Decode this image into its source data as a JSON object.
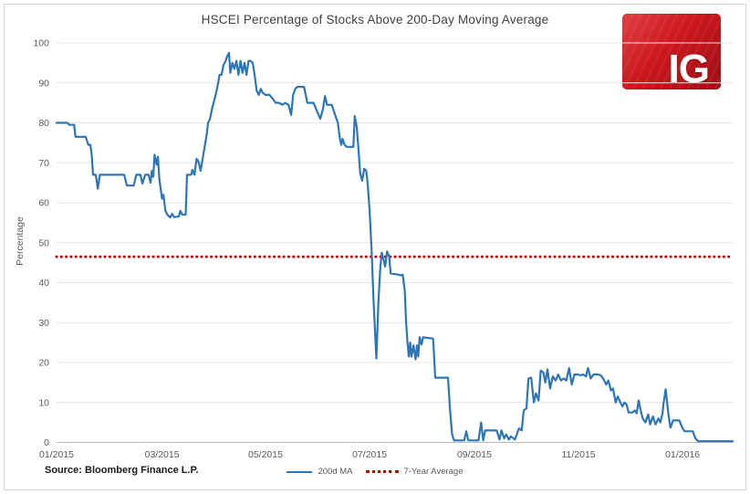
{
  "logo": {
    "text": "IG",
    "bg_color": "#cb181e"
  },
  "chart_data": {
    "type": "line",
    "title": "HSCEI Percentage of Stocks Above 200-Day Moving Average",
    "xlabel": "",
    "ylabel": "Percentage",
    "ylim": [
      0,
      100
    ],
    "y_ticks": [
      0,
      10,
      20,
      30,
      40,
      50,
      60,
      70,
      80,
      90,
      100
    ],
    "x_tick_labels": [
      "01/2015",
      "03/2015",
      "05/2015",
      "07/2015",
      "09/2015",
      "11/2015",
      "01/2016"
    ],
    "x_tick_pos": [
      0.0,
      0.156,
      0.309,
      0.463,
      0.618,
      0.772,
      0.926
    ],
    "grid": "horizontal",
    "legend_position": "bottom",
    "source": "Source: Bloomberg Finance L.P.",
    "reference_line": {
      "name": "7-Year Average",
      "value": 46.5,
      "color": "#C00000",
      "style": "dotted"
    },
    "series": [
      {
        "name": "200d MA",
        "color": "#2E75B6",
        "style": "solid",
        "points": [
          [
            0.0,
            80
          ],
          [
            0.016,
            80
          ],
          [
            0.019,
            79.5
          ],
          [
            0.026,
            79.5
          ],
          [
            0.028,
            76.5
          ],
          [
            0.043,
            76.5
          ],
          [
            0.047,
            74.5
          ],
          [
            0.05,
            74.5
          ],
          [
            0.052,
            72
          ],
          [
            0.054,
            67
          ],
          [
            0.058,
            67
          ],
          [
            0.061,
            63.5
          ],
          [
            0.064,
            67
          ],
          [
            0.1,
            67
          ],
          [
            0.104,
            64.3
          ],
          [
            0.114,
            64.3
          ],
          [
            0.118,
            67
          ],
          [
            0.124,
            67
          ],
          [
            0.127,
            64.8
          ],
          [
            0.131,
            67
          ],
          [
            0.136,
            67
          ],
          [
            0.139,
            65
          ],
          [
            0.141,
            68
          ],
          [
            0.143,
            66.5
          ],
          [
            0.145,
            72
          ],
          [
            0.148,
            69.5
          ],
          [
            0.15,
            71.5
          ],
          [
            0.152,
            66
          ],
          [
            0.156,
            61
          ],
          [
            0.158,
            62
          ],
          [
            0.161,
            58
          ],
          [
            0.164,
            57
          ],
          [
            0.168,
            56.3
          ],
          [
            0.171,
            57.2
          ],
          [
            0.174,
            56.4
          ],
          [
            0.181,
            56.6
          ],
          [
            0.183,
            58
          ],
          [
            0.186,
            57
          ],
          [
            0.191,
            57
          ],
          [
            0.193,
            67
          ],
          [
            0.199,
            67
          ],
          [
            0.201,
            68.2
          ],
          [
            0.204,
            67
          ],
          [
            0.207,
            71
          ],
          [
            0.21,
            70.3
          ],
          [
            0.213,
            68
          ],
          [
            0.216,
            71
          ],
          [
            0.219,
            74
          ],
          [
            0.222,
            77
          ],
          [
            0.224,
            80
          ],
          [
            0.227,
            81
          ],
          [
            0.23,
            83.5
          ],
          [
            0.233,
            85.5
          ],
          [
            0.236,
            87.5
          ],
          [
            0.239,
            90
          ],
          [
            0.241,
            92
          ],
          [
            0.244,
            92
          ],
          [
            0.247,
            94.5
          ],
          [
            0.25,
            95.5
          ],
          [
            0.252,
            96.5
          ],
          [
            0.255,
            97.5
          ],
          [
            0.257,
            92.5
          ],
          [
            0.26,
            95
          ],
          [
            0.263,
            93.5
          ],
          [
            0.266,
            95.5
          ],
          [
            0.269,
            92
          ],
          [
            0.272,
            95.5
          ],
          [
            0.275,
            92.5
          ],
          [
            0.278,
            95
          ],
          [
            0.281,
            92
          ],
          [
            0.284,
            95.5
          ],
          [
            0.287,
            95.5
          ],
          [
            0.29,
            95
          ],
          [
            0.293,
            92
          ],
          [
            0.296,
            88
          ],
          [
            0.299,
            87
          ],
          [
            0.302,
            88.5
          ],
          [
            0.305,
            87.5
          ],
          [
            0.309,
            87
          ],
          [
            0.315,
            87
          ],
          [
            0.32,
            86
          ],
          [
            0.324,
            85
          ],
          [
            0.329,
            85
          ],
          [
            0.334,
            84.5
          ],
          [
            0.338,
            85
          ],
          [
            0.343,
            84.5
          ],
          [
            0.347,
            82
          ],
          [
            0.35,
            87
          ],
          [
            0.353,
            88.5
          ],
          [
            0.356,
            89
          ],
          [
            0.366,
            89
          ],
          [
            0.371,
            85
          ],
          [
            0.38,
            85
          ],
          [
            0.385,
            83
          ],
          [
            0.39,
            81
          ],
          [
            0.394,
            83.5
          ],
          [
            0.397,
            86.7
          ],
          [
            0.4,
            84.5
          ],
          [
            0.407,
            84.5
          ],
          [
            0.412,
            82
          ],
          [
            0.416,
            80
          ],
          [
            0.419,
            76
          ],
          [
            0.421,
            74.5
          ],
          [
            0.423,
            76
          ],
          [
            0.426,
            74.5
          ],
          [
            0.429,
            74
          ],
          [
            0.439,
            74
          ],
          [
            0.441,
            81.7
          ],
          [
            0.444,
            79
          ],
          [
            0.447,
            72.5
          ],
          [
            0.449,
            67.5
          ],
          [
            0.452,
            65.5
          ],
          [
            0.455,
            68.5
          ],
          [
            0.458,
            68
          ],
          [
            0.46,
            65
          ],
          [
            0.463,
            58
          ],
          [
            0.466,
            48
          ],
          [
            0.469,
            35
          ],
          [
            0.473,
            21
          ],
          [
            0.476,
            35
          ],
          [
            0.479,
            44
          ],
          [
            0.481,
            47.5
          ],
          [
            0.484,
            45.5
          ],
          [
            0.486,
            44
          ],
          [
            0.489,
            47.8
          ],
          [
            0.492,
            46.5
          ],
          [
            0.494,
            42.3
          ],
          [
            0.506,
            42
          ],
          [
            0.509,
            41.8
          ],
          [
            0.512,
            42
          ],
          [
            0.515,
            38
          ],
          [
            0.517,
            30
          ],
          [
            0.519,
            25
          ],
          [
            0.521,
            21.5
          ],
          [
            0.523,
            25
          ],
          [
            0.525,
            21.5
          ],
          [
            0.528,
            24.3
          ],
          [
            0.531,
            20.8
          ],
          [
            0.533,
            24.3
          ],
          [
            0.535,
            21.5
          ],
          [
            0.537,
            26.3
          ],
          [
            0.54,
            24.5
          ],
          [
            0.542,
            26.3
          ],
          [
            0.557,
            26
          ],
          [
            0.56,
            16.2
          ],
          [
            0.579,
            16.2
          ],
          [
            0.582,
            8
          ],
          [
            0.585,
            2
          ],
          [
            0.588,
            0.5
          ],
          [
            0.603,
            0.5
          ],
          [
            0.606,
            2.8
          ],
          [
            0.609,
            0.5
          ],
          [
            0.624,
            0.5
          ],
          [
            0.628,
            5
          ],
          [
            0.631,
            0.5
          ],
          [
            0.634,
            3
          ],
          [
            0.651,
            3
          ],
          [
            0.655,
            0.7
          ],
          [
            0.658,
            3
          ],
          [
            0.662,
            1
          ],
          [
            0.665,
            2
          ],
          [
            0.669,
            0.7
          ],
          [
            0.672,
            1.5
          ],
          [
            0.678,
            0.7
          ],
          [
            0.684,
            3.5
          ],
          [
            0.688,
            3
          ],
          [
            0.691,
            8
          ],
          [
            0.695,
            8.5
          ],
          [
            0.698,
            16
          ],
          [
            0.702,
            16.2
          ],
          [
            0.706,
            10
          ],
          [
            0.709,
            12.3
          ],
          [
            0.713,
            10.5
          ],
          [
            0.716,
            18
          ],
          [
            0.72,
            17.5
          ],
          [
            0.723,
            15
          ],
          [
            0.726,
            18.3
          ],
          [
            0.73,
            13.5
          ],
          [
            0.734,
            16.5
          ],
          [
            0.738,
            15.5
          ],
          [
            0.742,
            17
          ],
          [
            0.746,
            15.5
          ],
          [
            0.75,
            16
          ],
          [
            0.754,
            15.5
          ],
          [
            0.758,
            18.6
          ],
          [
            0.762,
            14.5
          ],
          [
            0.766,
            17
          ],
          [
            0.771,
            17
          ],
          [
            0.775,
            16.8
          ],
          [
            0.779,
            17
          ],
          [
            0.783,
            16.5
          ],
          [
            0.786,
            18.6
          ],
          [
            0.79,
            16
          ],
          [
            0.794,
            17
          ],
          [
            0.801,
            17
          ],
          [
            0.805,
            16.8
          ],
          [
            0.809,
            15.8
          ],
          [
            0.813,
            14.5
          ],
          [
            0.816,
            15.5
          ],
          [
            0.82,
            13
          ],
          [
            0.823,
            13.5
          ],
          [
            0.827,
            10
          ],
          [
            0.83,
            11.5
          ],
          [
            0.834,
            10
          ],
          [
            0.837,
            9
          ],
          [
            0.84,
            10
          ],
          [
            0.843,
            9.5
          ],
          [
            0.846,
            7.5
          ],
          [
            0.852,
            7.5
          ],
          [
            0.855,
            8
          ],
          [
            0.858,
            7.3
          ],
          [
            0.861,
            10.5
          ],
          [
            0.864,
            8
          ],
          [
            0.867,
            6
          ],
          [
            0.871,
            5
          ],
          [
            0.875,
            7
          ],
          [
            0.878,
            4.5
          ],
          [
            0.882,
            6.5
          ],
          [
            0.886,
            4.5
          ],
          [
            0.89,
            6
          ],
          [
            0.893,
            5
          ],
          [
            0.896,
            7
          ],
          [
            0.898,
            10
          ],
          [
            0.901,
            13.3
          ],
          [
            0.905,
            7
          ],
          [
            0.908,
            3.7
          ],
          [
            0.912,
            5.5
          ],
          [
            0.921,
            5.5
          ],
          [
            0.926,
            3.5
          ],
          [
            0.929,
            2.8
          ],
          [
            0.941,
            2.8
          ],
          [
            0.945,
            1
          ],
          [
            0.949,
            0.3
          ],
          [
            1.0,
            0.3
          ]
        ]
      }
    ]
  }
}
